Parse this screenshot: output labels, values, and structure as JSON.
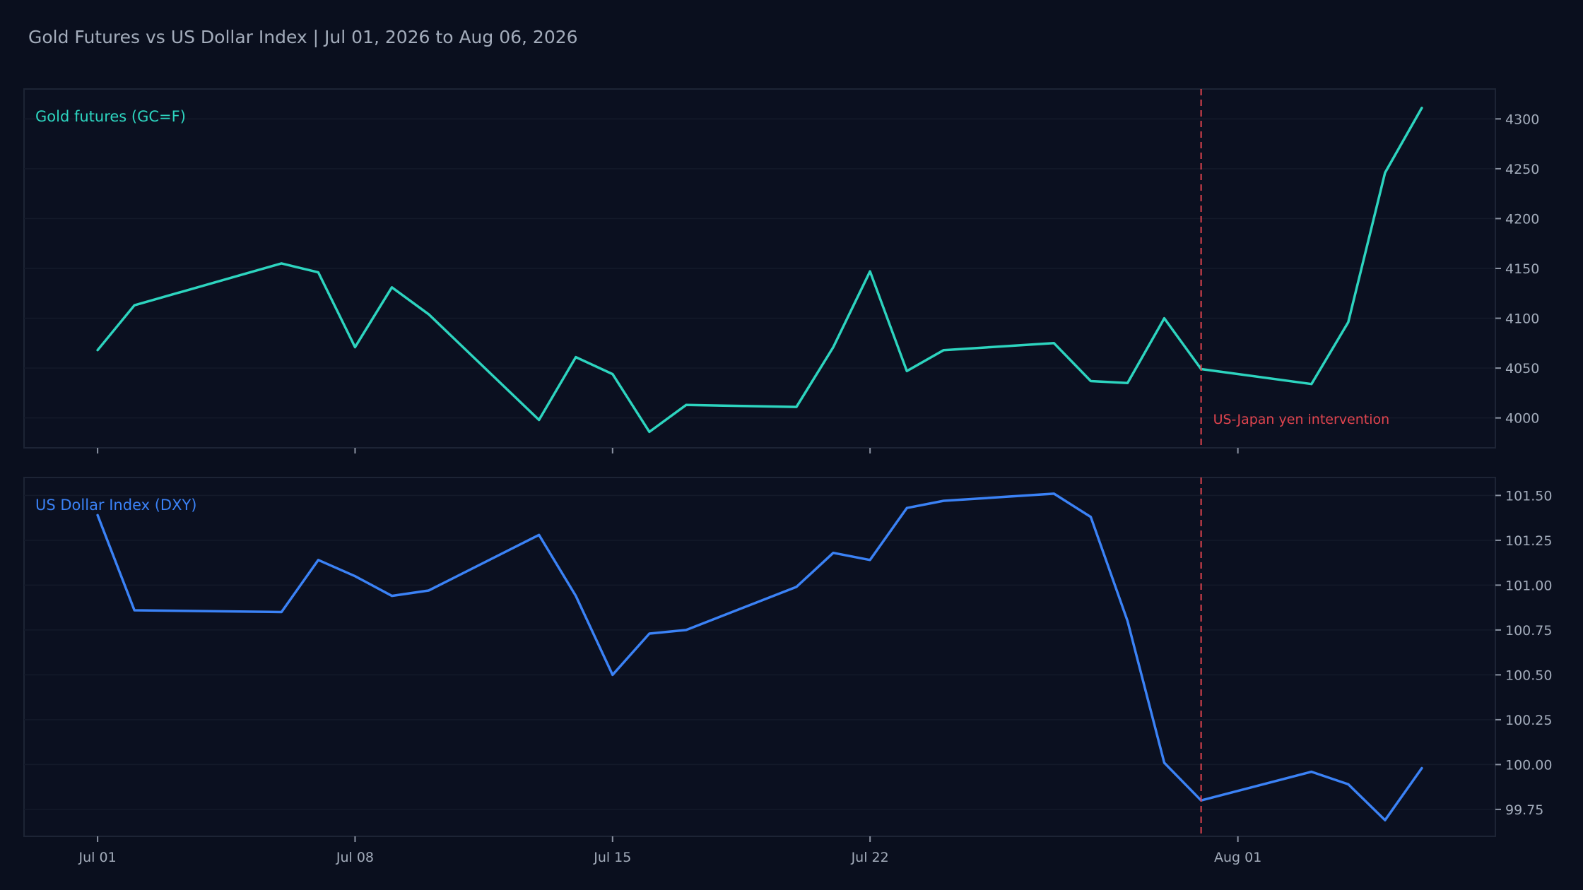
{
  "page": {
    "title": "Gold Futures vs US Dollar Index | Jul 01, 2026 to Aug 06, 2026"
  },
  "colors": {
    "background": "#0a0f1e",
    "gold": "#2dd4bf",
    "dxy": "#3b82f6",
    "event": "#e0444e",
    "text": "#a3acbb"
  },
  "chart_data": {
    "type": "line",
    "layout": "two stacked panels sharing x-axis",
    "x_ticks": [
      "Jul 01",
      "Jul 08",
      "Jul 15",
      "Jul 22",
      "Aug 01"
    ],
    "x_tick_dates": [
      "2026-07-01",
      "2026-07-08",
      "2026-07-15",
      "2026-07-22",
      "2026-08-01"
    ],
    "x_range": [
      "2026-06-29",
      "2026-08-08"
    ],
    "grid": true,
    "event": {
      "date": "2026-07-31",
      "label": "US-Japan yen intervention"
    },
    "panels": [
      {
        "series_name": "Gold futures (GC=F)",
        "color": "#2dd4bf",
        "ylim": [
          3970,
          4330
        ],
        "yticks": [
          4000,
          4050,
          4100,
          4150,
          4200,
          4250,
          4300
        ],
        "ytick_labels": [
          "4000",
          "4050",
          "4100",
          "4150",
          "4200",
          "4250",
          "4300"
        ],
        "show_event_label": true,
        "points": [
          [
            "2026-07-01",
            4068
          ],
          [
            "2026-07-02",
            4113
          ],
          [
            "2026-07-06",
            4155
          ],
          [
            "2026-07-07",
            4146
          ],
          [
            "2026-07-08",
            4071
          ],
          [
            "2026-07-09",
            4131
          ],
          [
            "2026-07-10",
            4104
          ],
          [
            "2026-07-13",
            3998
          ],
          [
            "2026-07-14",
            4061
          ],
          [
            "2026-07-15",
            4044
          ],
          [
            "2026-07-16",
            3986
          ],
          [
            "2026-07-17",
            4013
          ],
          [
            "2026-07-20",
            4011
          ],
          [
            "2026-07-21",
            4071
          ],
          [
            "2026-07-22",
            4147
          ],
          [
            "2026-07-23",
            4047
          ],
          [
            "2026-07-24",
            4068
          ],
          [
            "2026-07-27",
            4075
          ],
          [
            "2026-07-28",
            4037
          ],
          [
            "2026-07-29",
            4035
          ],
          [
            "2026-07-30",
            4100
          ],
          [
            "2026-07-31",
            4049
          ],
          [
            "2026-08-03",
            4034
          ],
          [
            "2026-08-04",
            4096
          ],
          [
            "2026-08-05",
            4246
          ],
          [
            "2026-08-06",
            4311
          ]
        ]
      },
      {
        "series_name": "US Dollar Index (DXY)",
        "color": "#3b82f6",
        "ylim": [
          99.6,
          101.6
        ],
        "yticks": [
          99.75,
          100.0,
          100.25,
          100.5,
          100.75,
          101.0,
          101.25,
          101.5
        ],
        "ytick_labels": [
          "99.75",
          "100.00",
          "100.25",
          "100.50",
          "100.75",
          "101.00",
          "101.25",
          "101.50"
        ],
        "show_event_label": false,
        "points": [
          [
            "2026-07-01",
            101.39
          ],
          [
            "2026-07-02",
            100.86
          ],
          [
            "2026-07-06",
            100.85
          ],
          [
            "2026-07-07",
            101.14
          ],
          [
            "2026-07-08",
            101.05
          ],
          [
            "2026-07-09",
            100.94
          ],
          [
            "2026-07-10",
            100.97
          ],
          [
            "2026-07-13",
            101.28
          ],
          [
            "2026-07-14",
            100.94
          ],
          [
            "2026-07-15",
            100.5
          ],
          [
            "2026-07-16",
            100.73
          ],
          [
            "2026-07-17",
            100.75
          ],
          [
            "2026-07-20",
            100.99
          ],
          [
            "2026-07-21",
            101.18
          ],
          [
            "2026-07-22",
            101.14
          ],
          [
            "2026-07-23",
            101.43
          ],
          [
            "2026-07-24",
            101.47
          ],
          [
            "2026-07-27",
            101.51
          ],
          [
            "2026-07-28",
            101.38
          ],
          [
            "2026-07-29",
            100.8
          ],
          [
            "2026-07-30",
            100.01
          ],
          [
            "2026-07-31",
            99.8
          ],
          [
            "2026-08-03",
            99.96
          ],
          [
            "2026-08-04",
            99.89
          ],
          [
            "2026-08-05",
            99.69
          ],
          [
            "2026-08-06",
            99.98
          ]
        ]
      }
    ]
  }
}
